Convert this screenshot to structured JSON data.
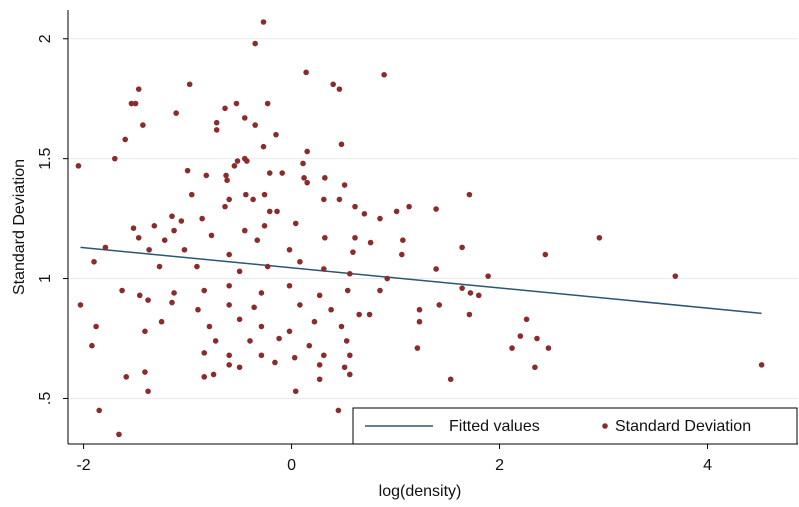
{
  "chart_data": {
    "type": "scatter",
    "x_label": "log(density)",
    "y_label": "Standard Deviation",
    "xlim": [
      -2.15,
      4.87
    ],
    "ylim": [
      0.31,
      2.12
    ],
    "xticks": [
      -2,
      0,
      2,
      4
    ],
    "yticks": [
      {
        "value": 0.5,
        "label": ".5"
      },
      1,
      1.5,
      2
    ],
    "grid": true,
    "legend": "lower right",
    "series": [
      {
        "name": "Fitted values",
        "type": "line",
        "color": "#2b5672",
        "x": [
          -2.03,
          4.52
        ],
        "values": [
          1.13,
          0.855
        ]
      },
      {
        "name": "Standard Deviation",
        "type": "scatter",
        "color": "#8b2b2b",
        "x": [
          -0.27,
          -0.35,
          0.14,
          0.89,
          -0.98,
          0.4,
          0.46,
          -1.47,
          -1.54,
          -1.5,
          -0.53,
          -0.23,
          -0.64,
          -1.11,
          -0.45,
          -0.72,
          -0.72,
          -1.43,
          -0.35,
          -0.15,
          -1.6,
          -0.27,
          0.48,
          -1.7,
          -0.45,
          -0.43,
          0.15,
          -2.05,
          0.11,
          -0.55,
          -1.0,
          -0.52,
          -0.82,
          -0.63,
          -0.21,
          0.12,
          -0.62,
          0.32,
          -0.09,
          0.15,
          0.51,
          -0.96,
          1.71,
          0.31,
          -0.44,
          -0.26,
          -0.6,
          -0.37,
          0.46,
          1.13,
          1.39,
          1.01,
          0.61,
          -0.64,
          -0.21,
          -0.14,
          0.7,
          0.85,
          -1.15,
          -0.86,
          -1.06,
          -1.52,
          -1.32,
          -1.13,
          0.04,
          -0.26,
          -0.45,
          -1.47,
          -1.22,
          -0.77,
          -0.33,
          0.32,
          0.61,
          0.76,
          1.07,
          1.64,
          2.96,
          -1.79,
          -1.37,
          -1.03,
          -0.6,
          -0.02,
          0.59,
          1.06,
          2.44,
          -1.9,
          -1.27,
          -0.91,
          -0.5,
          -0.23,
          0.08,
          0.31,
          0.56,
          0.92,
          1.39,
          1.89,
          3.69,
          -1.63,
          -1.46,
          -1.13,
          -0.84,
          -0.6,
          -0.29,
          -0.02,
          0.27,
          0.54,
          0.85,
          1.64,
          1.72,
          1.8,
          -2.03,
          -1.38,
          -1.15,
          -0.9,
          -0.6,
          -0.36,
          0.08,
          0.38,
          0.65,
          1.23,
          1.42,
          1.71,
          -1.88,
          -1.41,
          -1.25,
          -0.79,
          -0.5,
          -0.29,
          -0.02,
          0.22,
          0.48,
          0.75,
          1.23,
          2.26,
          -0.73,
          -0.4,
          -0.12,
          0.17,
          0.53,
          -1.92,
          1.21,
          2.12,
          2.2,
          2.36,
          2.47,
          -0.84,
          -0.6,
          -0.29,
          0.03,
          0.31,
          0.56,
          -0.6,
          -0.5,
          -0.16,
          0.27,
          0.51,
          2.34,
          4.52,
          -1.59,
          -1.41,
          -0.84,
          -0.75,
          0.27,
          0.56,
          1.53,
          -1.38,
          0.04,
          -1.85,
          0.45,
          -1.66
        ],
        "values": [
          2.07,
          1.98,
          1.86,
          1.85,
          1.81,
          1.81,
          1.79,
          1.79,
          1.73,
          1.73,
          1.73,
          1.73,
          1.71,
          1.69,
          1.67,
          1.65,
          1.62,
          1.64,
          1.64,
          1.6,
          1.58,
          1.55,
          1.56,
          1.5,
          1.5,
          1.49,
          1.53,
          1.47,
          1.48,
          1.47,
          1.45,
          1.49,
          1.43,
          1.43,
          1.44,
          1.42,
          1.41,
          1.42,
          1.44,
          1.4,
          1.39,
          1.35,
          1.35,
          1.33,
          1.35,
          1.35,
          1.33,
          1.33,
          1.33,
          1.3,
          1.29,
          1.28,
          1.3,
          1.3,
          1.28,
          1.28,
          1.27,
          1.25,
          1.26,
          1.25,
          1.24,
          1.21,
          1.22,
          1.2,
          1.23,
          1.22,
          1.2,
          1.17,
          1.16,
          1.18,
          1.16,
          1.17,
          1.17,
          1.15,
          1.16,
          1.13,
          1.17,
          1.13,
          1.12,
          1.12,
          1.1,
          1.12,
          1.11,
          1.1,
          1.1,
          1.07,
          1.05,
          1.05,
          1.03,
          1.05,
          1.07,
          1.04,
          1.02,
          1.0,
          1.04,
          1.01,
          1.01,
          0.95,
          0.93,
          0.94,
          0.95,
          0.97,
          0.94,
          0.97,
          0.93,
          0.95,
          0.95,
          0.96,
          0.94,
          0.93,
          0.89,
          0.91,
          0.9,
          0.87,
          0.89,
          0.88,
          0.89,
          0.87,
          0.85,
          0.87,
          0.89,
          0.85,
          0.8,
          0.78,
          0.82,
          0.8,
          0.83,
          0.8,
          0.78,
          0.82,
          0.8,
          0.85,
          0.82,
          0.83,
          0.74,
          0.74,
          0.75,
          0.72,
          0.74,
          0.72,
          0.71,
          0.71,
          0.76,
          0.75,
          0.71,
          0.69,
          0.68,
          0.68,
          0.67,
          0.68,
          0.68,
          0.64,
          0.63,
          0.65,
          0.64,
          0.63,
          0.63,
          0.64,
          0.59,
          0.61,
          0.59,
          0.6,
          0.58,
          0.6,
          0.58,
          0.53,
          0.53,
          0.45,
          0.45,
          0.35
        ]
      }
    ]
  }
}
